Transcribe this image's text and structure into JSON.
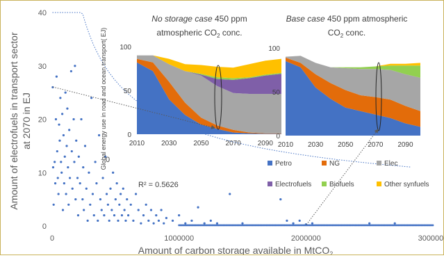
{
  "colors": {
    "frame": "#c9b25a",
    "scatter": "#4472c4",
    "trend": "#4472c4",
    "petro": "#4472c4",
    "ng": "#e36c0a",
    "elec": "#a6a6a6",
    "electrofuels": "#7f5fa8",
    "biofuels": "#92d050",
    "other": "#ffc000",
    "arrow": "#595959"
  },
  "chart_data": [
    {
      "type": "scatter",
      "xlabel": "Amount of carbon storage available in MtCO",
      "xlabel_sub": "2",
      "ylabel_line1": "Amount of electrofuels in transport sector",
      "ylabel_line2": "at 2070 in EJ",
      "xlim": [
        0,
        3000000
      ],
      "ylim": [
        0,
        40
      ],
      "xticks": [
        "0",
        "1000000",
        "2000000",
        "3000000"
      ],
      "yticks": [
        "0",
        "10",
        "20",
        "30",
        "40"
      ],
      "annotation": "R² = 0.5626",
      "stray_label": "0",
      "trendline": "power",
      "points": [
        [
          5000,
          26
        ],
        [
          8000,
          11
        ],
        [
          12000,
          4
        ],
        [
          20000,
          12
        ],
        [
          25000,
          8
        ],
        [
          30000,
          20
        ],
        [
          35000,
          28
        ],
        [
          40000,
          14
        ],
        [
          45000,
          9
        ],
        [
          50000,
          6
        ],
        [
          55000,
          19
        ],
        [
          60000,
          16
        ],
        [
          65000,
          24
        ],
        [
          70000,
          12
        ],
        [
          75000,
          10
        ],
        [
          80000,
          21
        ],
        [
          85000,
          3
        ],
        [
          90000,
          17
        ],
        [
          95000,
          8
        ],
        [
          100000,
          13
        ],
        [
          105000,
          25
        ],
        [
          110000,
          6
        ],
        [
          115000,
          15
        ],
        [
          120000,
          22
        ],
        [
          125000,
          11
        ],
        [
          130000,
          4
        ],
        [
          135000,
          18
        ],
        [
          140000,
          9
        ],
        [
          150000,
          29
        ],
        [
          155000,
          14
        ],
        [
          160000,
          7
        ],
        [
          170000,
          20
        ],
        [
          175000,
          12
        ],
        [
          180000,
          30
        ],
        [
          185000,
          5
        ],
        [
          190000,
          16
        ],
        [
          200000,
          9
        ],
        [
          205000,
          2
        ],
        [
          210000,
          13
        ],
        [
          220000,
          8
        ],
        [
          230000,
          20
        ],
        [
          240000,
          5
        ],
        [
          245000,
          11
        ],
        [
          250000,
          3
        ],
        [
          260000,
          15
        ],
        [
          270000,
          7
        ],
        [
          280000,
          1
        ],
        [
          290000,
          10
        ],
        [
          300000,
          4
        ],
        [
          310000,
          24
        ],
        [
          320000,
          6
        ],
        [
          330000,
          2
        ],
        [
          340000,
          12
        ],
        [
          350000,
          8
        ],
        [
          360000,
          1
        ],
        [
          370000,
          17
        ],
        [
          380000,
          5
        ],
        [
          390000,
          3
        ],
        [
          400000,
          9
        ],
        [
          410000,
          2
        ],
        [
          420000,
          13
        ],
        [
          430000,
          6
        ],
        [
          440000,
          4
        ],
        [
          450000,
          1
        ],
        [
          460000,
          7
        ],
        [
          470000,
          3
        ],
        [
          480000,
          10
        ],
        [
          490000,
          2
        ],
        [
          500000,
          5
        ],
        [
          510000,
          8
        ],
        [
          520000,
          1
        ],
        [
          530000,
          4
        ],
        [
          540000,
          6
        ],
        [
          550000,
          2
        ],
        [
          560000,
          7
        ],
        [
          570000,
          3
        ],
        [
          580000,
          1
        ],
        [
          590000,
          5
        ],
        [
          600000,
          2
        ],
        [
          620000,
          4
        ],
        [
          640000,
          1
        ],
        [
          660000,
          6
        ],
        [
          680000,
          3
        ],
        [
          700000,
          0.5
        ],
        [
          720000,
          2
        ],
        [
          740000,
          4
        ],
        [
          760000,
          1
        ],
        [
          780000,
          3
        ],
        [
          800000,
          0.5
        ],
        [
          820000,
          2
        ],
        [
          840000,
          1
        ],
        [
          860000,
          3
        ],
        [
          880000,
          0.5
        ],
        [
          900000,
          1.5
        ],
        [
          950000,
          1
        ],
        [
          1000000,
          2
        ],
        [
          1050000,
          0.5
        ],
        [
          1100000,
          1
        ],
        [
          1150000,
          3.5
        ],
        [
          1200000,
          0.5
        ],
        [
          1250000,
          1
        ],
        [
          1300000,
          0.5
        ],
        [
          1400000,
          6
        ],
        [
          1500000,
          0.5
        ],
        [
          1800000,
          5
        ],
        [
          1850000,
          1
        ],
        [
          1900000,
          0.5
        ],
        [
          1950000,
          1
        ],
        [
          2000000,
          0.3
        ],
        [
          2050000,
          0.5
        ],
        [
          2500000,
          0.5
        ],
        [
          2700000,
          0.5
        ]
      ]
    },
    {
      "type": "area",
      "title_italic": "No storage case",
      "title_rest": " 450 ppm",
      "title_line2_prefix": "atmospheric CO",
      "title_sub": "2",
      "title_line2_suffix": " conc.",
      "ylabel": "Global energy use in road and ocean transport( EJ)",
      "x": [
        2010,
        2020,
        2030,
        2040,
        2050,
        2060,
        2070,
        2080,
        2090,
        2100
      ],
      "xticks": [
        "2010",
        "2030",
        "2050",
        "2070",
        "2090"
      ],
      "yticks": [
        "0",
        "50",
        "100"
      ],
      "ylim": [
        0,
        100
      ],
      "series": [
        {
          "key": "petro",
          "values": [
            82,
            72,
            40,
            22,
            11,
            6,
            2,
            1,
            0.5,
            0.5
          ]
        },
        {
          "key": "ng",
          "values": [
            4,
            10,
            20,
            14,
            8,
            4,
            3,
            1,
            0.5,
            0.5
          ]
        },
        {
          "key": "elec",
          "values": [
            4,
            8,
            20,
            36,
            48,
            45,
            42,
            44,
            45,
            45
          ]
        },
        {
          "key": "electrofuels",
          "values": [
            0,
            0,
            0,
            0,
            1,
            8,
            15,
            18,
            21,
            23
          ]
        },
        {
          "key": "biofuels",
          "values": [
            0,
            0,
            0,
            0,
            1,
            2,
            2,
            1,
            1,
            1
          ]
        },
        {
          "key": "other",
          "values": [
            0,
            0,
            6,
            8,
            10,
            12,
            12,
            15,
            16,
            16
          ]
        }
      ]
    },
    {
      "type": "area",
      "title_italic": "Base case",
      "title_rest": " 450 ppm atmospheric",
      "title_line2_prefix": "CO",
      "title_sub": "2",
      "title_line2_suffix": " conc.",
      "x": [
        2010,
        2020,
        2030,
        2040,
        2050,
        2060,
        2070,
        2080,
        2090,
        2100
      ],
      "xticks": [
        "2010",
        "2030",
        "2050",
        "2070",
        "2090"
      ],
      "yticks": [
        "0",
        "50",
        "100"
      ],
      "ylim": [
        0,
        100
      ],
      "series": [
        {
          "key": "petro",
          "values": [
            85,
            78,
            55,
            42,
            32,
            28,
            24,
            20,
            14,
            10
          ]
        },
        {
          "key": "ng",
          "values": [
            4,
            5,
            15,
            18,
            20,
            18,
            20,
            21,
            20,
            18
          ]
        },
        {
          "key": "elec",
          "values": [
            1,
            8,
            13,
            18,
            25,
            30,
            32,
            34,
            36,
            38
          ]
        },
        {
          "key": "electrofuels",
          "values": [
            0,
            0,
            0,
            0,
            0,
            0,
            0,
            0,
            0,
            0
          ]
        },
        {
          "key": "biofuels",
          "values": [
            0,
            0,
            0,
            0,
            1,
            2,
            3,
            5,
            10,
            14
          ]
        },
        {
          "key": "other",
          "values": [
            0,
            0,
            0,
            0,
            0,
            0,
            0,
            2,
            2,
            3
          ]
        }
      ]
    }
  ],
  "legend": [
    {
      "key": "petro",
      "label": "Petro"
    },
    {
      "key": "ng",
      "label": "NG"
    },
    {
      "key": "elec",
      "label": "Elec"
    },
    {
      "key": "electrofuels",
      "label": "Electrofuels"
    },
    {
      "key": "biofuels",
      "label": "Biofuels"
    },
    {
      "key": "other",
      "label": "Other synfuels"
    }
  ]
}
